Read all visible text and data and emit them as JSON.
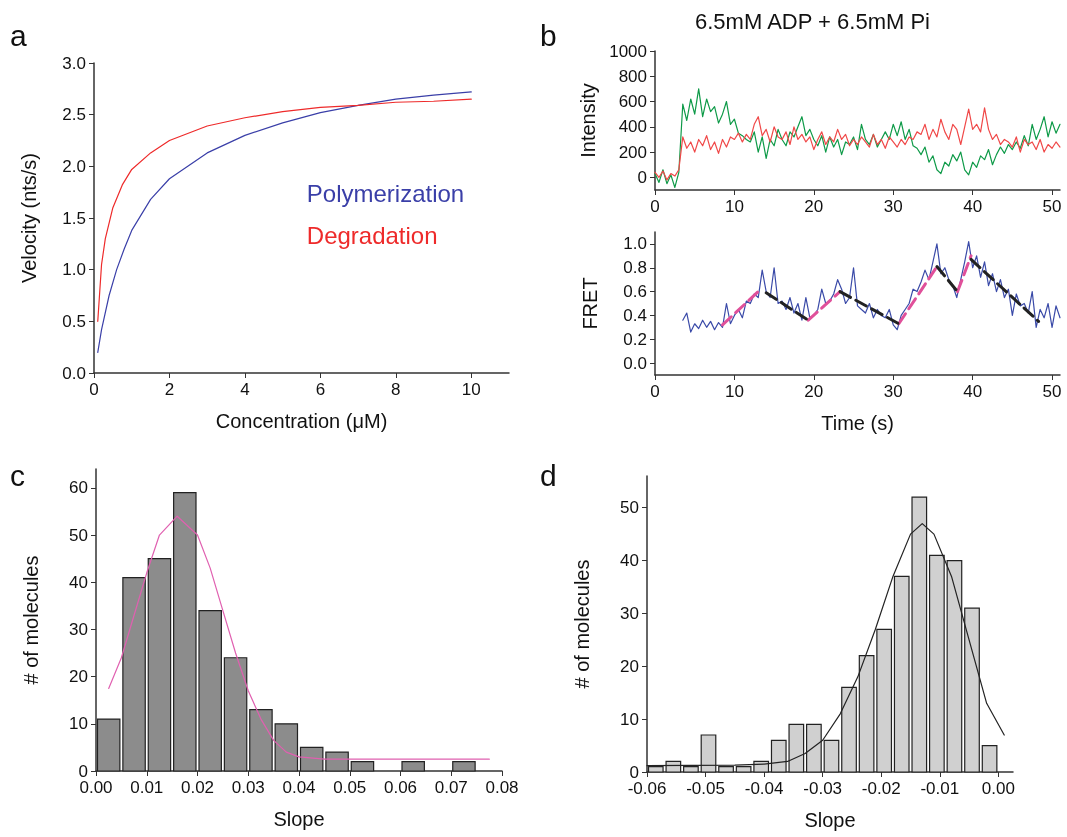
{
  "chart_data": [
    {
      "type": "line",
      "annotations": [
        "a"
      ],
      "xlabel": "Concentration (μM)",
      "ylabel": "Velocity (nts/s)",
      "xlim": [
        0,
        11
      ],
      "xticks": [
        0,
        2,
        4,
        6,
        8,
        10
      ],
      "ylim": [
        0,
        3
      ],
      "yticks": [
        {
          "value": 0,
          "label": "0.0"
        },
        0.5,
        {
          "value": 1,
          "label": "1.0"
        },
        1.5,
        {
          "value": 2,
          "label": "2.0"
        },
        2.5,
        {
          "value": 3,
          "label": "3.0"
        }
      ],
      "grid": false,
      "legend": "right",
      "series": [
        {
          "name": "Polymerization",
          "color": "#3a3fa8",
          "x": [
            0.1,
            0.2,
            0.4,
            0.6,
            0.8,
            1,
            1.5,
            2,
            3,
            4,
            5,
            6,
            7,
            8,
            9,
            10
          ],
          "values": [
            0.2,
            0.42,
            0.75,
            1.0,
            1.2,
            1.38,
            1.68,
            1.88,
            2.13,
            2.3,
            2.42,
            2.52,
            2.59,
            2.65,
            2.69,
            2.72
          ]
        },
        {
          "name": "Degradation",
          "color": "#ee2a2a",
          "x": [
            0.1,
            0.2,
            0.3,
            0.5,
            0.75,
            1,
            1.5,
            2,
            3,
            4,
            5,
            6,
            7,
            8,
            9,
            10
          ],
          "values": [
            0.5,
            1.05,
            1.3,
            1.6,
            1.82,
            1.97,
            2.13,
            2.25,
            2.39,
            2.47,
            2.53,
            2.57,
            2.59,
            2.62,
            2.63,
            2.65
          ]
        }
      ]
    },
    {
      "type": "line",
      "title": "6.5mM ADP + 6.5mM Pi",
      "annotations": [
        "b"
      ],
      "ylabel": "Intensity",
      "xlim": [
        0,
        51
      ],
      "xticks": [
        0,
        10,
        20,
        30,
        40,
        50
      ],
      "ylim": [
        -100,
        1000
      ],
      "yticks": [
        0,
        200,
        400,
        600,
        800,
        1000
      ],
      "grid": false,
      "series": [
        {
          "color": "#0e9a48",
          "x": [
            0,
            0.5,
            1,
            1.5,
            2,
            2.5,
            3,
            3.5,
            4,
            4.5,
            5,
            5.5,
            6,
            6.5,
            7,
            7.5,
            8,
            8.5,
            9,
            9.5,
            10,
            10.5,
            11,
            11.5,
            12,
            12.5,
            13,
            13.5,
            14,
            14.5,
            15,
            15.5,
            16,
            16.5,
            17,
            17.5,
            18,
            18.5,
            19,
            19.5,
            20,
            20.5,
            21,
            21.5,
            22,
            22.5,
            23,
            23.5,
            24,
            24.5,
            25,
            25.5,
            26,
            26.5,
            27,
            27.5,
            28,
            28.5,
            29,
            29.5,
            30,
            30.5,
            31,
            31.5,
            32,
            32.5,
            33,
            33.5,
            34,
            34.5,
            35,
            35.5,
            36,
            36.5,
            37,
            37.5,
            38,
            38.5,
            39,
            39.5,
            40,
            40.5,
            41,
            41.5,
            42,
            42.5,
            43,
            43.5,
            44,
            44.5,
            45,
            45.5,
            46,
            46.5,
            47,
            47.5,
            48,
            48.5,
            49,
            49.5,
            50,
            50.5,
            51
          ],
          "values": [
            30,
            -40,
            60,
            -50,
            20,
            -80,
            40,
            580,
            450,
            620,
            500,
            700,
            480,
            620,
            520,
            560,
            430,
            500,
            600,
            420,
            460,
            350,
            330,
            300,
            280,
            360,
            200,
            320,
            150,
            300,
            250,
            380,
            300,
            250,
            360,
            320,
            400,
            480,
            330,
            380,
            300,
            250,
            330,
            200,
            320,
            240,
            300,
            180,
            280,
            260,
            320,
            220,
            420,
            300,
            260,
            340,
            240,
            300,
            360,
            300,
            420,
            330,
            440,
            300,
            380,
            250,
            230,
            180,
            240,
            120,
            170,
            60,
            30,
            120,
            90,
            180,
            130,
            200,
            60,
            20,
            120,
            80,
            170,
            140,
            220,
            100,
            180,
            240,
            190,
            260,
            220,
            280,
            230,
            330,
            250,
            420,
            300,
            380,
            480,
            320,
            440,
            350,
            420
          ]
        },
        {
          "color": "#f04848",
          "x": [
            0,
            0.5,
            1,
            1.5,
            2,
            2.5,
            3,
            3.5,
            4,
            4.5,
            5,
            5.5,
            6,
            6.5,
            7,
            7.5,
            8,
            8.5,
            9,
            9.5,
            10,
            10.5,
            11,
            11.5,
            12,
            12.5,
            13,
            13.5,
            14,
            14.5,
            15,
            15.5,
            16,
            16.5,
            17,
            17.5,
            18,
            18.5,
            19,
            19.5,
            20,
            20.5,
            21,
            21.5,
            22,
            22.5,
            23,
            23.5,
            24,
            24.5,
            25,
            25.5,
            26,
            26.5,
            27,
            27.5,
            28,
            28.5,
            29,
            29.5,
            30,
            30.5,
            31,
            31.5,
            32,
            32.5,
            33,
            33.5,
            34,
            34.5,
            35,
            35.5,
            36,
            36.5,
            37,
            37.5,
            38,
            38.5,
            39,
            39.5,
            40,
            40.5,
            41,
            41.5,
            42,
            42.5,
            43,
            43.5,
            44,
            44.5,
            45,
            45.5,
            46,
            46.5,
            47,
            47.5,
            48,
            48.5,
            49,
            49.5,
            50,
            50.5,
            51
          ],
          "values": [
            40,
            0,
            50,
            -20,
            30,
            10,
            60,
            320,
            230,
            280,
            200,
            300,
            250,
            330,
            220,
            280,
            190,
            300,
            240,
            320,
            300,
            350,
            280,
            340,
            300,
            420,
            480,
            330,
            380,
            280,
            400,
            320,
            300,
            360,
            260,
            400,
            300,
            340,
            280,
            320,
            220,
            300,
            360,
            260,
            320,
            280,
            380,
            300,
            340,
            250,
            300,
            260,
            320,
            280,
            240,
            340,
            260,
            300,
            230,
            320,
            280,
            240,
            300,
            260,
            320,
            300,
            360,
            340,
            420,
            300,
            380,
            320,
            460,
            360,
            300,
            420,
            380,
            260,
            400,
            540,
            380,
            420,
            360,
            550,
            380,
            300,
            340,
            260,
            300,
            280,
            240,
            320,
            200,
            300,
            260,
            280,
            220,
            300,
            200,
            260,
            230,
            280,
            240
          ]
        }
      ]
    },
    {
      "type": "line",
      "xlabel": "Time (s)",
      "ylabel": "FRET",
      "xlim": [
        0,
        51
      ],
      "xticks": [
        0,
        10,
        20,
        30,
        40,
        50
      ],
      "ylim": [
        -0.1,
        1.1
      ],
      "yticks": [
        {
          "value": 0,
          "label": "0.0"
        },
        0.2,
        0.4,
        0.6,
        0.8,
        {
          "value": 1,
          "label": "1.0"
        }
      ],
      "grid": false,
      "series": [
        {
          "color": "#3a4aa8",
          "x": [
            3.5,
            4,
            4.5,
            5,
            5.5,
            6,
            6.5,
            7,
            7.5,
            8,
            8.5,
            9,
            9.5,
            10,
            10.5,
            11,
            11.5,
            12,
            12.5,
            13,
            13.5,
            14,
            14.5,
            15,
            15.5,
            16,
            16.5,
            17,
            17.5,
            18,
            18.5,
            19,
            19.5,
            20,
            20.5,
            21,
            21.5,
            22,
            22.5,
            23,
            23.5,
            24,
            24.5,
            25,
            25.5,
            26,
            26.5,
            27,
            27.5,
            28,
            28.5,
            29,
            29.5,
            30,
            30.5,
            31,
            31.5,
            32,
            32.5,
            33,
            33.5,
            34,
            34.5,
            35,
            35.5,
            36,
            36.5,
            37,
            37.5,
            38,
            38.5,
            39,
            39.5,
            40,
            40.5,
            41,
            41.5,
            42,
            42.5,
            43,
            43.5,
            44,
            44.5,
            45,
            45.5,
            46,
            46.5,
            47,
            47.5,
            48,
            48.5,
            49,
            49.5,
            50,
            50.5,
            51
          ],
          "values": [
            0.36,
            0.42,
            0.26,
            0.33,
            0.29,
            0.36,
            0.3,
            0.35,
            0.28,
            0.34,
            0.3,
            0.5,
            0.33,
            0.4,
            0.45,
            0.38,
            0.52,
            0.5,
            0.58,
            0.55,
            0.78,
            0.6,
            0.55,
            0.8,
            0.5,
            0.52,
            0.45,
            0.55,
            0.42,
            0.5,
            0.36,
            0.55,
            0.38,
            0.4,
            0.45,
            0.62,
            0.5,
            0.52,
            0.58,
            0.7,
            0.62,
            0.5,
            0.55,
            0.8,
            0.48,
            0.45,
            0.42,
            0.5,
            0.38,
            0.45,
            0.4,
            0.38,
            0.45,
            0.32,
            0.28,
            0.4,
            0.45,
            0.5,
            0.62,
            0.6,
            0.68,
            0.78,
            0.7,
            0.85,
            1.0,
            0.75,
            0.8,
            0.7,
            0.65,
            0.55,
            0.7,
            0.85,
            1.02,
            0.8,
            0.9,
            0.72,
            0.85,
            0.65,
            0.75,
            0.6,
            0.7,
            0.55,
            0.62,
            0.4,
            0.58,
            0.48,
            0.5,
            0.42,
            0.6,
            0.3,
            0.45,
            0.38,
            0.5,
            0.3,
            0.48,
            0.38
          ]
        },
        {
          "color": "#e0509a",
          "line_style": "dashed",
          "x": [
            8.5,
            13
          ],
          "values": [
            0.32,
            0.6
          ]
        },
        {
          "color": "#e0509a",
          "line_style": "dashed",
          "x": [
            19.3,
            23.3
          ],
          "values": [
            0.36,
            0.6
          ]
        },
        {
          "color": "#e0509a",
          "line_style": "dashed",
          "x": [
            30.7,
            35.5
          ],
          "values": [
            0.33,
            0.81
          ]
        },
        {
          "color": "#e0509a",
          "line_style": "dashed",
          "x": [
            38.1,
            39.8
          ],
          "values": [
            0.6,
            0.9
          ]
        },
        {
          "color": "#222222",
          "line_style": "dashed",
          "x": [
            14,
            19.3
          ],
          "values": [
            0.59,
            0.36
          ]
        },
        {
          "color": "#222222",
          "line_style": "dashed",
          "x": [
            23.3,
            30.7
          ],
          "values": [
            0.6,
            0.33
          ]
        },
        {
          "color": "#222222",
          "line_style": "dashed",
          "x": [
            35.5,
            38.1
          ],
          "values": [
            0.81,
            0.6
          ]
        },
        {
          "color": "#222222",
          "line_style": "dashed",
          "x": [
            39.8,
            48.3
          ],
          "values": [
            0.87,
            0.35
          ]
        }
      ]
    },
    {
      "type": "histogram",
      "annotations": [
        "c"
      ],
      "xlabel": "Slope",
      "ylabel": "# of molecules",
      "xlim": [
        0,
        0.08
      ],
      "xticks": [
        {
          "value": 0,
          "label": "0.00"
        },
        {
          "value": 0.01,
          "label": "0.01"
        },
        {
          "value": 0.02,
          "label": "0.02"
        },
        {
          "value": 0.03,
          "label": "0.03"
        },
        {
          "value": 0.04,
          "label": "0.04"
        },
        {
          "value": 0.05,
          "label": "0.05"
        },
        {
          "value": 0.06,
          "label": "0.06"
        },
        {
          "value": 0.07,
          "label": "0.07"
        },
        {
          "value": 0.08,
          "label": "0.08"
        }
      ],
      "ylim": [
        0,
        64
      ],
      "yticks": [
        0,
        10,
        20,
        30,
        40,
        50,
        60
      ],
      "grid": false,
      "series": [
        {
          "type": "histogram",
          "color": "#8c8c8c",
          "bins": [
            0,
            0.005,
            0.01,
            0.015,
            0.02,
            0.025,
            0.03,
            0.035,
            0.04,
            0.045,
            0.05,
            0.055,
            0.06,
            0.065,
            0.07,
            0.075
          ],
          "values": [
            11,
            41,
            45,
            59,
            34,
            24,
            13,
            10,
            5,
            4,
            2,
            0,
            2,
            0,
            2
          ]
        },
        {
          "type": "line",
          "color": "#e060b0",
          "x": [
            0.0025,
            0.005,
            0.0075,
            0.01,
            0.0125,
            0.016,
            0.02,
            0.0225,
            0.025,
            0.0275,
            0.03,
            0.0325,
            0.035,
            0.0375,
            0.04,
            0.045,
            0.0775
          ],
          "values": [
            17.5,
            24,
            33,
            42,
            50,
            54,
            50,
            43,
            34,
            25,
            17,
            11,
            6.5,
            4,
            3,
            2.5,
            2.5
          ]
        }
      ]
    },
    {
      "type": "histogram",
      "annotations": [
        "d"
      ],
      "xlabel": "Slope",
      "ylabel": "# of molecules",
      "xlim": [
        -0.06,
        0.0025
      ],
      "xticks": [
        -0.06,
        -0.05,
        -0.04,
        -0.03,
        -0.02,
        -0.01,
        {
          "value": 0,
          "label": "0.00"
        }
      ],
      "ylim": [
        0,
        56
      ],
      "yticks": [
        0,
        10,
        20,
        30,
        40,
        50
      ],
      "grid": false,
      "series": [
        {
          "type": "histogram",
          "color": "#d0d0d0",
          "bins": [
            -0.06,
            -0.057,
            -0.054,
            -0.051,
            -0.048,
            -0.045,
            -0.042,
            -0.039,
            -0.036,
            -0.033,
            -0.03,
            -0.027,
            -0.024,
            -0.021,
            -0.018,
            -0.015,
            -0.012,
            -0.009,
            -0.006,
            -0.003,
            0
          ],
          "values": [
            1,
            2,
            1,
            7,
            1,
            1,
            2,
            6,
            9,
            9,
            6,
            16,
            22,
            27,
            37,
            52,
            41,
            40,
            31,
            5
          ]
        },
        {
          "type": "line",
          "color": "#222222",
          "x": [
            -0.06,
            -0.045,
            -0.04,
            -0.036,
            -0.033,
            -0.03,
            -0.027,
            -0.024,
            -0.021,
            -0.018,
            -0.015,
            -0.013,
            -0.011,
            -0.008,
            -0.005,
            -0.002,
            0.001
          ],
          "values": [
            1.2,
            1.3,
            1.5,
            2,
            3.5,
            6,
            11,
            18,
            27,
            37,
            45,
            47,
            45,
            37,
            25,
            13,
            7
          ]
        }
      ]
    }
  ]
}
